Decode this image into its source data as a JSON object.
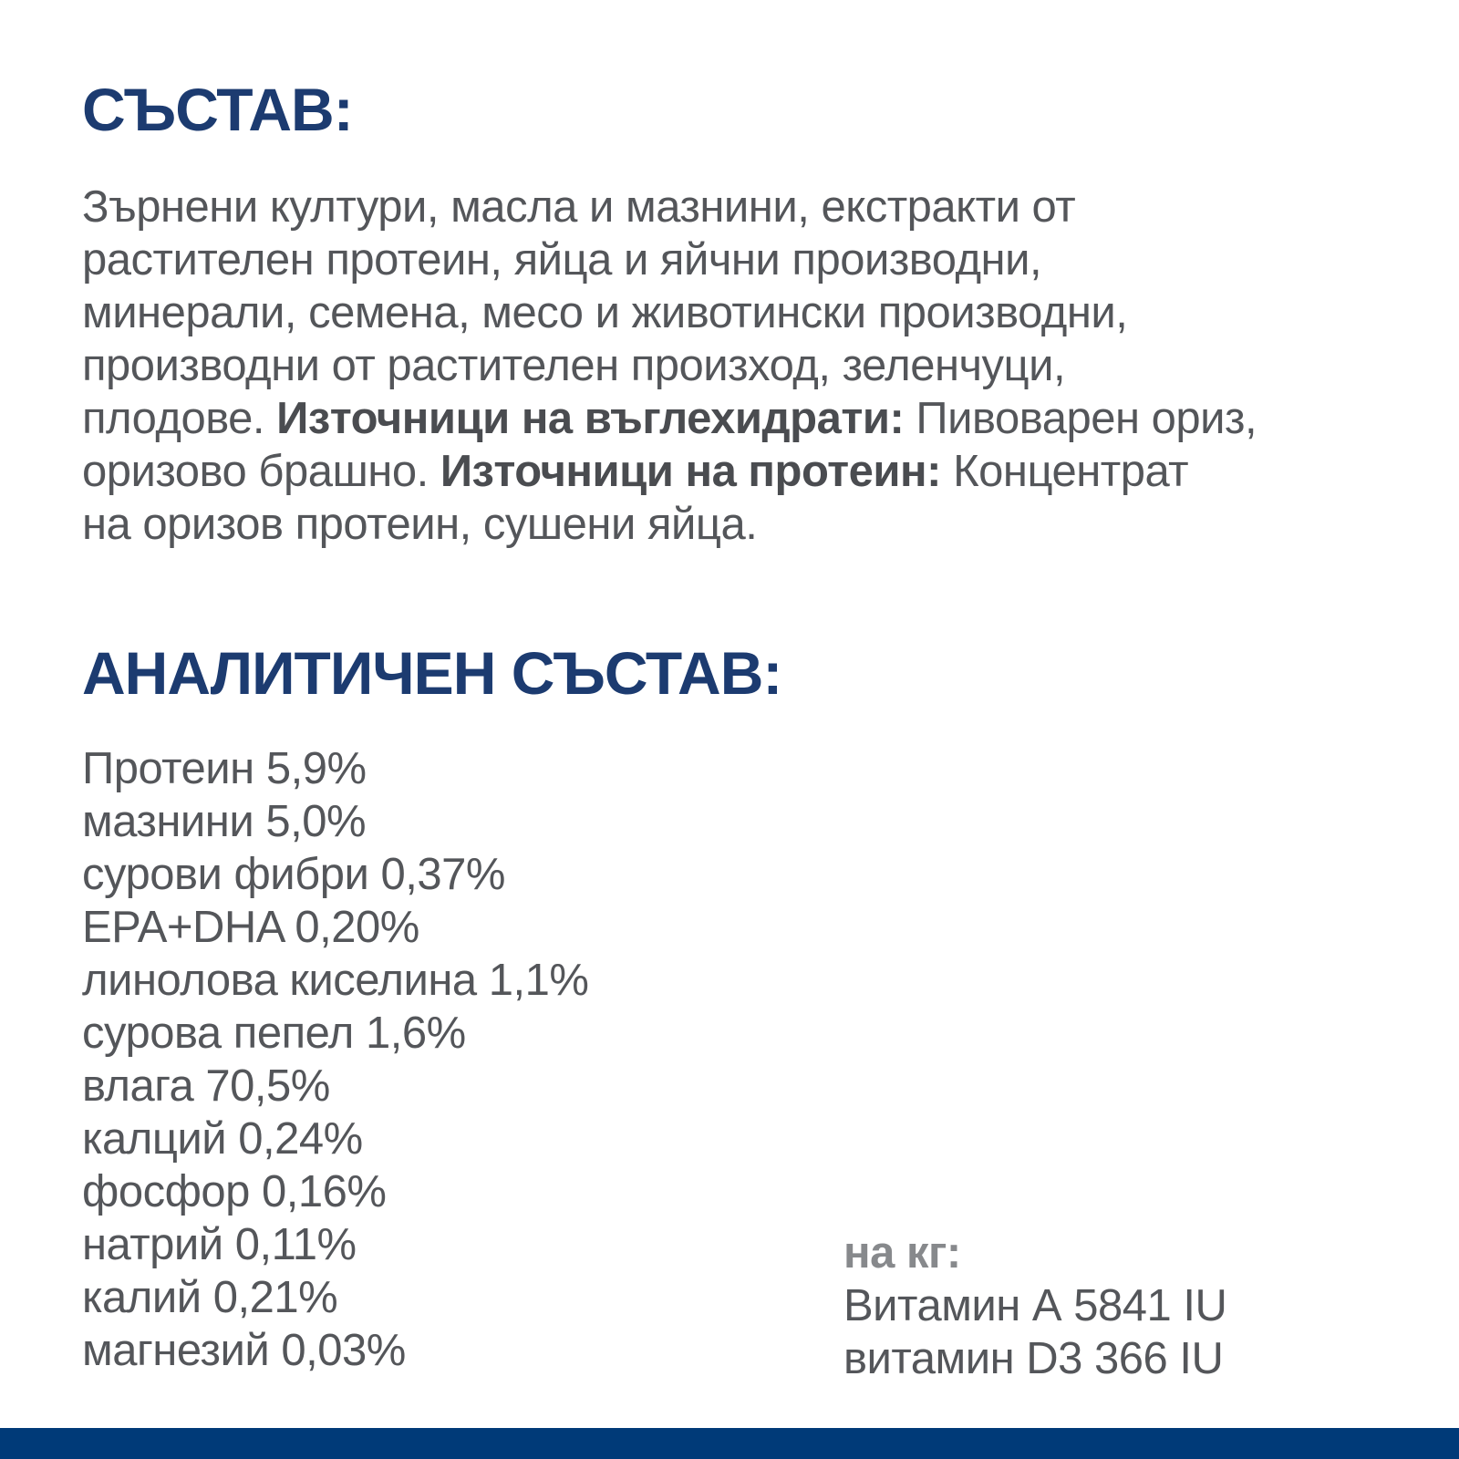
{
  "colors": {
    "heading_navy": "#1c3b70",
    "body_gray": "#54565a",
    "muted_gray": "#87898c",
    "footer_navy": "#003a78",
    "background": "#ffffff"
  },
  "composition": {
    "title": "СЪСТАВ:",
    "line1": "Зърнени култури, масла и мазнини, екстракти от",
    "line2": "растителен протеин, яйца и яйчни производни,",
    "line3": "минерали, семена, месо и животински производни,",
    "line4": "производни от растителен произход, зеленчуци,",
    "line5_pre": "плодове. ",
    "line5_bold": "Източници на въглехидрати:",
    "line5_post": " Пивоварен ориз,",
    "line6_pre": "оризово брашно. ",
    "line6_bold": "Източници на протеин:",
    "line6_post": " Концентрат",
    "line7": "на оризов протеин, сушени яйца."
  },
  "analytical": {
    "title": "АНАЛИТИЧЕН СЪСТАВ:",
    "items": [
      {
        "label": "Протеин",
        "value": "5,9%"
      },
      {
        "label": "мазнини",
        "value": "5,0%"
      },
      {
        "label": "сурови фибри",
        "value": "0,37%"
      },
      {
        "label": "EPA+DHA",
        "value": "0,20%"
      },
      {
        "label": "линолова киселина",
        "value": "1,1%"
      },
      {
        "label": "сурова пепел",
        "value": "1,6%"
      },
      {
        "label": "влага",
        "value": "70,5%"
      },
      {
        "label": "калций",
        "value": "0,24%"
      },
      {
        "label": "фосфор",
        "value": "0,16%"
      },
      {
        "label": "натрий",
        "value": "0,11%"
      },
      {
        "label": "калий",
        "value": "0,21%"
      },
      {
        "label": "магнезий",
        "value": "0,03%"
      }
    ],
    "per_kg": {
      "label": "на кг:",
      "lines": [
        "Витамин А 5841 IU",
        "витамин D3 366 IU"
      ]
    }
  }
}
